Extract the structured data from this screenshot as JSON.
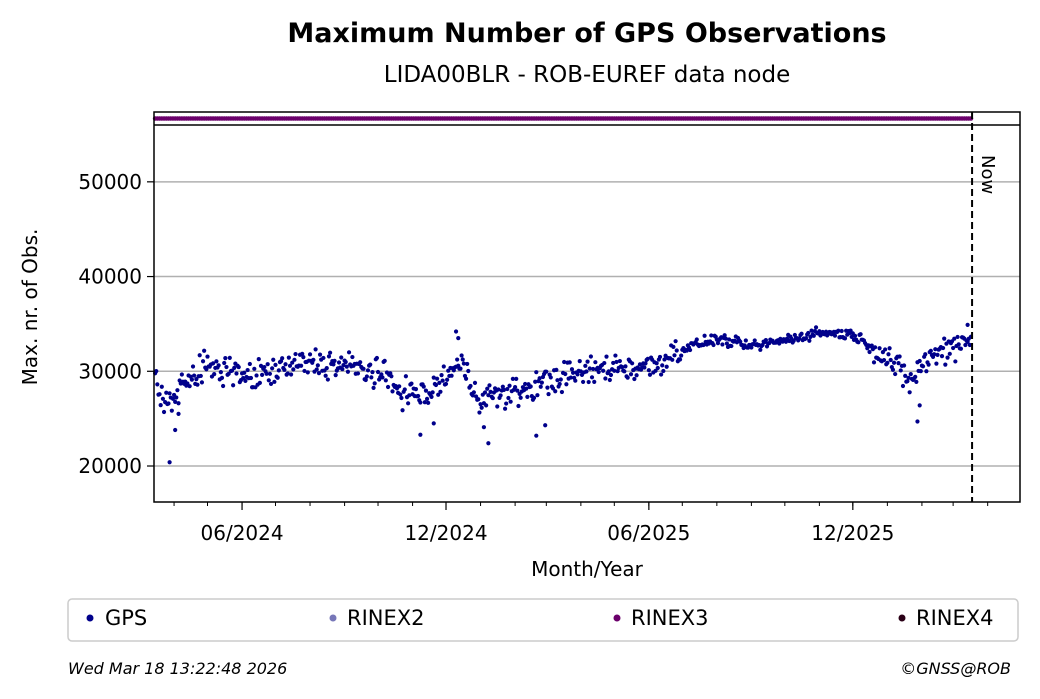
{
  "chart_data": {
    "type": "scatter",
    "title": "Maximum Number of GPS Observations",
    "subtitle": "LIDA00BLR - ROB-EUREF data node",
    "xlabel": "Month/Year",
    "ylabel": "Max. nr. of Obs.",
    "x_range": [
      "2024-03-14",
      "2026-04-30"
    ],
    "ylim": [
      16200,
      56000
    ],
    "y_ticks": [
      20000,
      30000,
      40000,
      50000
    ],
    "y_tick_labels": [
      "20000",
      "30000",
      "40000",
      "50000"
    ],
    "x_ticks": [
      "2024-06-01",
      "2024-12-01",
      "2025-06-01",
      "2025-12-01"
    ],
    "x_tick_labels": [
      "06/2024",
      "12/2024",
      "06/2025",
      "12/2025"
    ],
    "grid": "y",
    "now_line": {
      "date": "2026-03-18",
      "label": "Now"
    },
    "series": [
      {
        "name": "GPS",
        "color": "#00008b",
        "start": "2024-03-15",
        "end": "2026-03-17",
        "anchors": [
          [
            "2024-03-15",
            29500
          ],
          [
            "2024-03-25",
            26500
          ],
          [
            "2024-04-08",
            28500
          ],
          [
            "2024-05-01",
            30500
          ],
          [
            "2024-06-01",
            29200
          ],
          [
            "2024-07-01",
            30000
          ],
          [
            "2024-08-01",
            31000
          ],
          [
            "2024-09-01",
            30600
          ],
          [
            "2024-10-01",
            29800
          ],
          [
            "2024-10-25",
            27800
          ],
          [
            "2024-11-15",
            27400
          ],
          [
            "2024-12-01",
            29500
          ],
          [
            "2024-12-15",
            30800
          ],
          [
            "2024-12-28",
            27500
          ],
          [
            "2025-01-20",
            27400
          ],
          [
            "2025-02-15",
            28200
          ],
          [
            "2025-03-01",
            29000
          ],
          [
            "2025-04-01",
            29800
          ],
          [
            "2025-05-01",
            30500
          ],
          [
            "2025-06-01",
            30400
          ],
          [
            "2025-07-01",
            32400
          ],
          [
            "2025-08-01",
            33400
          ],
          [
            "2025-09-01",
            32600
          ],
          [
            "2025-10-01",
            33300
          ],
          [
            "2025-11-01",
            34100
          ],
          [
            "2025-12-01",
            33900
          ],
          [
            "2026-01-01",
            31500
          ],
          [
            "2026-01-20",
            28800
          ],
          [
            "2026-02-05",
            31200
          ],
          [
            "2026-03-01",
            32800
          ],
          [
            "2026-03-17",
            33600
          ]
        ],
        "outliers": [
          [
            "2024-03-28",
            20400
          ],
          [
            "2024-04-02",
            23800
          ],
          [
            "2024-04-05",
            25500
          ],
          [
            "2024-11-08",
            23300
          ],
          [
            "2024-11-20",
            24500
          ],
          [
            "2024-12-10",
            34200
          ],
          [
            "2024-12-12",
            33500
          ],
          [
            "2025-01-08",
            22400
          ],
          [
            "2025-01-04",
            24100
          ],
          [
            "2025-02-20",
            23200
          ],
          [
            "2025-02-28",
            24300
          ],
          [
            "2026-01-28",
            24700
          ],
          [
            "2026-01-30",
            26400
          ],
          [
            "2026-03-14",
            34900
          ]
        ]
      },
      {
        "name": "RINEX2",
        "color": "#7777b8"
      },
      {
        "name": "RINEX3",
        "color": "#6b006b",
        "start": "2024-03-15",
        "end": "2026-03-17",
        "value": 56200
      },
      {
        "name": "RINEX4",
        "color": "#2a0016"
      }
    ]
  },
  "footer": {
    "timestamp": "Wed Mar 18 13:22:48 2026",
    "credit": "©GNSS@ROB"
  }
}
